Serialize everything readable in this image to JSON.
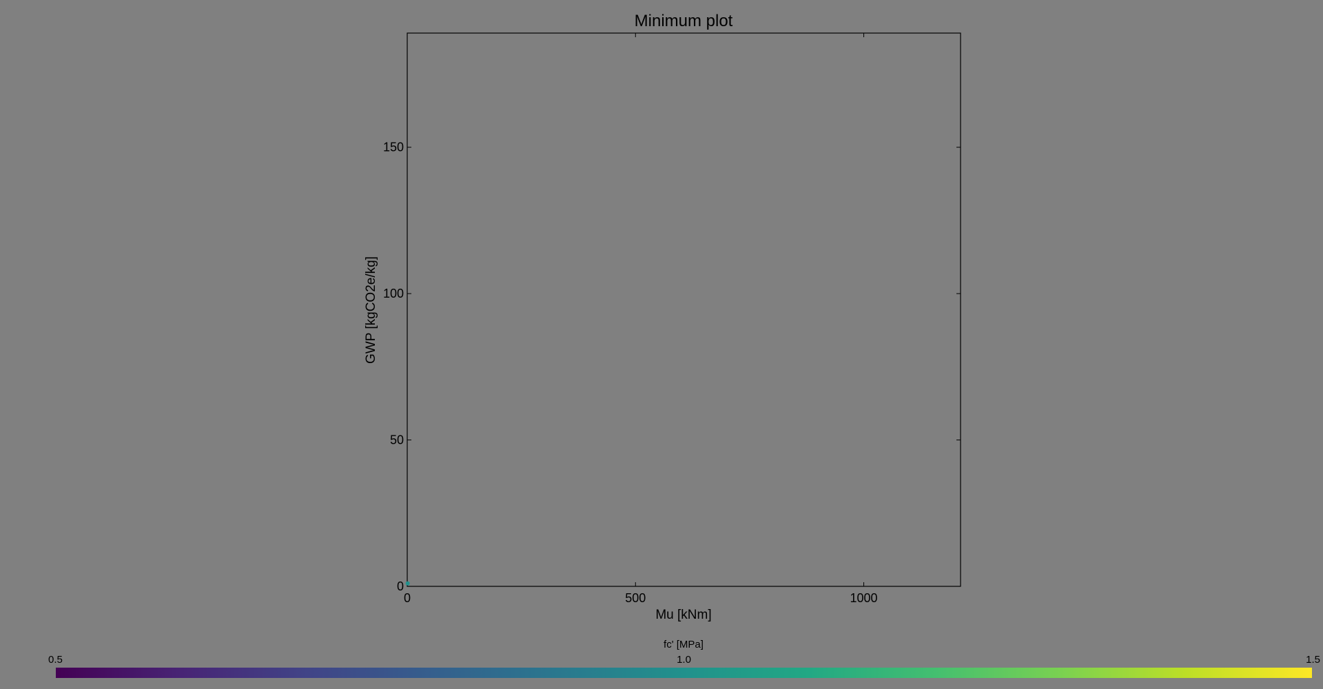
{
  "chart_data": {
    "type": "scatter",
    "title": "Minimum plot",
    "xlabel": "Mu [kNm]",
    "ylabel": "GWP [kgCO2e/kg]",
    "xlim": [
      0,
      1212
    ],
    "ylim": [
      0,
      189
    ],
    "xticks": [
      0,
      500,
      1000
    ],
    "yticks": [
      0,
      50,
      100,
      150
    ],
    "grid": false,
    "points": [
      {
        "x": 1,
        "y": 1,
        "c": 0.98
      }
    ],
    "colorbar": {
      "label": "fc' [MPa]",
      "min": 0.5,
      "max": 1.5,
      "ticks": [
        "0.5",
        "1.0",
        "1.5"
      ],
      "colormap": "viridis",
      "placement": "bottom"
    }
  },
  "colors": {
    "background": "#808080",
    "axes": "#000000",
    "point": "#21918c"
  }
}
